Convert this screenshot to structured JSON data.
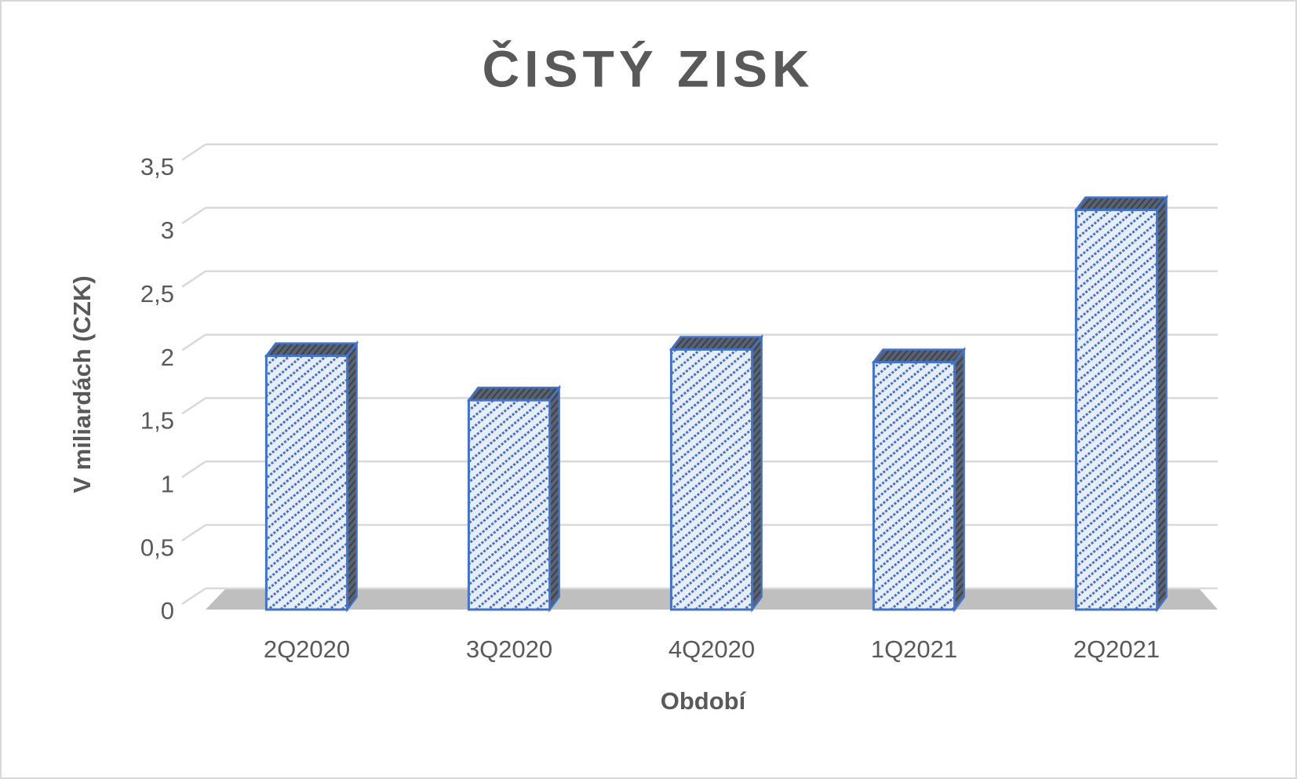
{
  "chart_data": {
    "type": "bar",
    "title": "ČISTÝ ZISK",
    "x_label": "Období",
    "y_label": "V miliardách (CZK)",
    "categories": [
      "2Q2020",
      "3Q2020",
      "4Q2020",
      "1Q2021",
      "2Q2021"
    ],
    "values": [
      2.0,
      1.65,
      2.05,
      1.95,
      3.15
    ],
    "color": "#4472c4",
    "ylim": [
      0,
      3.5
    ],
    "yticks": [
      0,
      {
        "value": 0.5,
        "label": "0,5"
      },
      1,
      {
        "value": 1.5,
        "label": "1,5"
      },
      2,
      {
        "value": 2.5,
        "label": "2,5"
      },
      3,
      {
        "value": 3.5,
        "label": "3,5"
      }
    ],
    "grid": true
  }
}
